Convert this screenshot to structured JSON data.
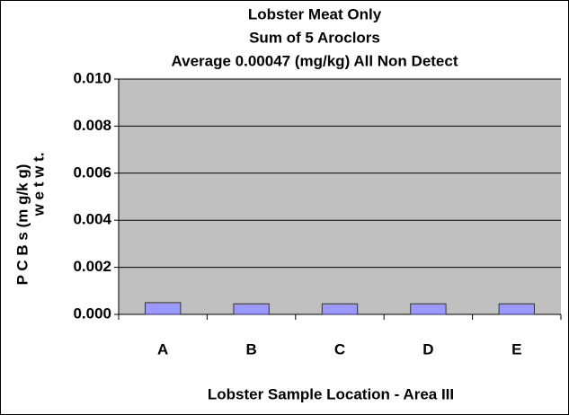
{
  "chart_data": {
    "type": "bar",
    "title": [
      "Lobster Meat Only",
      "Sum of 5 Aroclors",
      "Average 0.00047 (mg/kg) All Non Detect"
    ],
    "ylabel": [
      "P C B s (m g/k g)",
      "w e t w t."
    ],
    "xlabel": "Lobster Sample Location - Area III",
    "categories": [
      "A",
      "B",
      "C",
      "D",
      "E"
    ],
    "values": [
      0.0005,
      0.00045,
      0.00045,
      0.00045,
      0.00045
    ],
    "color": "#9999ff",
    "ylim": [
      0,
      0.01
    ],
    "yticks": [
      {
        "value": 0,
        "label": "0.000"
      },
      0.002,
      0.004,
      0.006,
      0.008,
      {
        "value": 0.01,
        "label": "0.010"
      }
    ],
    "grid": true
  }
}
